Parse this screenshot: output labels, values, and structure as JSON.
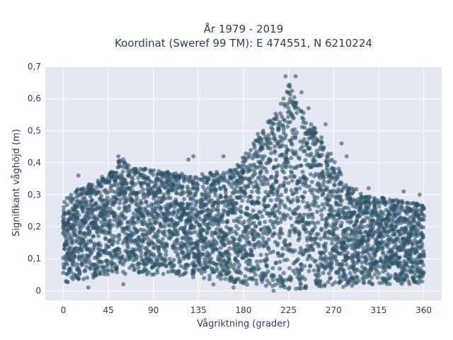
{
  "chart_data": {
    "type": "scatter",
    "title_lines": [
      "År 1979 - 2019",
      "Koordinat (Sweref 99 TM): E 474551, N 6210224"
    ],
    "xlabel": "Vågriktning (grader)",
    "ylabel": "Signifikant våghöjd (m)",
    "xlim": [
      -18,
      378
    ],
    "ylim": [
      -0.03,
      0.7
    ],
    "x_ticks": [
      0,
      45,
      90,
      135,
      180,
      225,
      270,
      315,
      360
    ],
    "x_tick_labels": [
      "0",
      "45",
      "90",
      "135",
      "180",
      "225",
      "270",
      "315",
      "360"
    ],
    "y_ticks": [
      0,
      0.1,
      0.2,
      0.3,
      0.4,
      0.5,
      0.6,
      0.7
    ],
    "y_tick_labels": [
      "0",
      "0,1",
      "0,2",
      "0,3",
      "0,4",
      "0,5",
      "0,6",
      "0,7"
    ],
    "grid": true,
    "legend": "none",
    "marker_color": "#2f5468",
    "background_color": "#e5e8f1",
    "upper_envelope": [
      {
        "x": 0,
        "y": 0.28
      },
      {
        "x": 10,
        "y": 0.31
      },
      {
        "x": 20,
        "y": 0.33
      },
      {
        "x": 30,
        "y": 0.34
      },
      {
        "x": 45,
        "y": 0.37
      },
      {
        "x": 55,
        "y": 0.41
      },
      {
        "x": 70,
        "y": 0.39
      },
      {
        "x": 90,
        "y": 0.38
      },
      {
        "x": 110,
        "y": 0.37
      },
      {
        "x": 130,
        "y": 0.36
      },
      {
        "x": 150,
        "y": 0.37
      },
      {
        "x": 170,
        "y": 0.38
      },
      {
        "x": 185,
        "y": 0.44
      },
      {
        "x": 200,
        "y": 0.52
      },
      {
        "x": 215,
        "y": 0.57
      },
      {
        "x": 225,
        "y": 0.66
      },
      {
        "x": 235,
        "y": 0.58
      },
      {
        "x": 250,
        "y": 0.52
      },
      {
        "x": 265,
        "y": 0.45
      },
      {
        "x": 280,
        "y": 0.35
      },
      {
        "x": 300,
        "y": 0.3
      },
      {
        "x": 320,
        "y": 0.29
      },
      {
        "x": 340,
        "y": 0.28
      },
      {
        "x": 360,
        "y": 0.27
      }
    ],
    "lower_envelope": [
      {
        "x": 0,
        "y": 0.02
      },
      {
        "x": 45,
        "y": 0.05
      },
      {
        "x": 90,
        "y": 0.05
      },
      {
        "x": 135,
        "y": 0.04
      },
      {
        "x": 180,
        "y": 0.02
      },
      {
        "x": 225,
        "y": 0.0
      },
      {
        "x": 270,
        "y": 0.01
      },
      {
        "x": 315,
        "y": 0.02
      },
      {
        "x": 360,
        "y": 0.02
      }
    ],
    "outliers": [
      {
        "x": 222,
        "y": 0.67
      },
      {
        "x": 232,
        "y": 0.67
      },
      {
        "x": 225,
        "y": 0.64
      },
      {
        "x": 238,
        "y": 0.62
      },
      {
        "x": 220,
        "y": 0.6
      },
      {
        "x": 245,
        "y": 0.57
      },
      {
        "x": 262,
        "y": 0.52
      },
      {
        "x": 278,
        "y": 0.46
      },
      {
        "x": 283,
        "y": 0.42
      },
      {
        "x": 190,
        "y": 0.46
      },
      {
        "x": 160,
        "y": 0.42
      },
      {
        "x": 125,
        "y": 0.41
      },
      {
        "x": 130,
        "y": 0.42
      },
      {
        "x": 55,
        "y": 0.42
      },
      {
        "x": 60,
        "y": 0.41
      },
      {
        "x": 15,
        "y": 0.36
      },
      {
        "x": 305,
        "y": 0.32
      },
      {
        "x": 340,
        "y": 0.31
      },
      {
        "x": 356,
        "y": 0.3
      },
      {
        "x": 25,
        "y": 0.01
      },
      {
        "x": 60,
        "y": 0.02
      },
      {
        "x": 150,
        "y": 0.02
      },
      {
        "x": 170,
        "y": 0.01
      },
      {
        "x": 210,
        "y": 0.0
      }
    ]
  }
}
